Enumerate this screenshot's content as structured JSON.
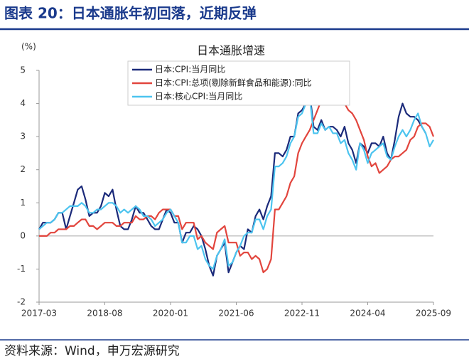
{
  "page": {
    "heading": "图表 20：日本通胀年初回落，近期反弹",
    "source": "资料来源：Wind，申万宏源研究"
  },
  "chart_data": {
    "type": "line",
    "title": "日本通胀增速",
    "y_label": "(%)",
    "categories": [
      "2017-03",
      null,
      null,
      null,
      null,
      null,
      null,
      null,
      null,
      null,
      null,
      null,
      null,
      null,
      null,
      null,
      null,
      "2018-08",
      null,
      null,
      null,
      null,
      null,
      null,
      null,
      null,
      null,
      null,
      null,
      null,
      null,
      null,
      null,
      null,
      "2020-01",
      null,
      null,
      null,
      null,
      null,
      null,
      null,
      null,
      null,
      null,
      null,
      null,
      null,
      null,
      null,
      null,
      "2021-06",
      null,
      null,
      null,
      null,
      null,
      null,
      null,
      null,
      null,
      null,
      null,
      null,
      null,
      null,
      null,
      null,
      "2022-11",
      null,
      null,
      null,
      null,
      null,
      null,
      null,
      null,
      null,
      null,
      null,
      null,
      null,
      null,
      null,
      null,
      "2024-04",
      null,
      null,
      null,
      null,
      null,
      null,
      null,
      null,
      null,
      null,
      null,
      null,
      null,
      null,
      null,
      null,
      "2025-09"
    ],
    "series": [
      {
        "name": "日本:CPI:当月同比",
        "color": "#1b2a7a",
        "values": [
          0.2,
          0.4,
          0.4,
          0.4,
          0.5,
          0.7,
          0.7,
          0.2,
          0.6,
          1.0,
          1.4,
          1.5,
          1.1,
          0.6,
          0.7,
          0.7,
          0.9,
          1.3,
          1.2,
          1.4,
          0.8,
          0.3,
          0.2,
          0.2,
          0.5,
          0.9,
          0.7,
          0.7,
          0.5,
          0.3,
          0.2,
          0.2,
          0.5,
          0.8,
          0.7,
          0.4,
          0.4,
          -0.2,
          0.1,
          0.1,
          0.3,
          0.2,
          0.0,
          -0.4,
          -0.9,
          -1.2,
          -0.6,
          -0.4,
          -0.2,
          -1.1,
          -0.8,
          -0.5,
          -0.3,
          -0.4,
          0.2,
          0.1,
          0.6,
          0.8,
          0.5,
          0.9,
          1.2,
          2.5,
          2.5,
          2.4,
          2.6,
          3.0,
          3.0,
          3.7,
          3.8,
          4.0,
          4.3,
          3.3,
          3.2,
          3.5,
          3.2,
          3.3,
          3.3,
          3.2,
          3.0,
          3.3,
          2.8,
          2.6,
          2.2,
          2.8,
          2.7,
          2.5,
          2.8,
          2.8,
          2.7,
          3.0,
          2.5,
          2.3,
          2.9,
          3.6,
          4.0,
          3.7,
          3.6,
          3.6,
          3.5,
          3.3,
          3.1,
          null,
          null
        ]
      },
      {
        "name": "日本:CPI:总项(剔除新鲜食品和能源):同比",
        "color": "#e2453d",
        "values": [
          0.0,
          0.0,
          0.0,
          0.1,
          0.1,
          0.2,
          0.2,
          0.2,
          0.3,
          0.3,
          0.4,
          0.5,
          0.5,
          0.3,
          0.3,
          0.2,
          0.3,
          0.4,
          0.4,
          0.4,
          0.3,
          0.3,
          0.4,
          0.4,
          0.4,
          0.6,
          0.5,
          0.5,
          0.6,
          0.6,
          0.5,
          0.7,
          0.8,
          0.8,
          0.8,
          0.6,
          0.6,
          0.2,
          0.4,
          0.4,
          0.4,
          -0.1,
          0.0,
          -0.2,
          -0.3,
          -0.4,
          0.1,
          0.2,
          0.3,
          -0.2,
          -0.2,
          -0.2,
          -0.6,
          -0.5,
          -0.5,
          -0.7,
          -0.6,
          -0.7,
          -1.1,
          -1.0,
          -0.7,
          0.8,
          0.8,
          1.0,
          1.2,
          1.6,
          1.8,
          2.5,
          2.8,
          3.0,
          3.2,
          3.5,
          3.8,
          4.1,
          4.3,
          4.2,
          4.3,
          4.3,
          4.2,
          4.0,
          3.8,
          3.7,
          3.5,
          3.2,
          2.9,
          2.4,
          2.1,
          2.2,
          1.9,
          2.0,
          2.1,
          2.3,
          2.4,
          2.4,
          2.5,
          2.6,
          2.9,
          3.0,
          3.3,
          3.4,
          3.4,
          3.3,
          3.0
        ]
      },
      {
        "name": "日本:核心CPI:当月同比",
        "color": "#4cc4ef",
        "values": [
          0.2,
          0.3,
          0.4,
          0.4,
          0.5,
          0.7,
          0.7,
          0.8,
          0.9,
          0.9,
          0.9,
          1.0,
          0.9,
          0.7,
          0.7,
          0.8,
          0.8,
          0.9,
          1.0,
          1.0,
          0.9,
          0.7,
          0.8,
          0.7,
          0.8,
          0.9,
          0.8,
          0.6,
          0.6,
          0.5,
          0.3,
          0.4,
          0.5,
          0.7,
          0.8,
          0.6,
          0.4,
          -0.2,
          -0.2,
          0.0,
          0.0,
          -0.4,
          -0.3,
          -0.7,
          -0.9,
          -1.0,
          -0.6,
          -0.4,
          -0.1,
          -0.9,
          -0.8,
          -0.5,
          -0.3,
          0.0,
          0.1,
          0.1,
          0.5,
          0.5,
          0.2,
          0.6,
          0.8,
          2.1,
          2.1,
          2.2,
          2.4,
          2.8,
          3.0,
          3.6,
          3.7,
          4.0,
          4.2,
          3.1,
          3.1,
          3.4,
          3.2,
          3.3,
          3.1,
          3.1,
          2.8,
          2.9,
          2.5,
          2.3,
          2.0,
          2.8,
          2.6,
          2.2,
          2.5,
          2.6,
          2.7,
          2.8,
          2.4,
          2.3,
          2.7,
          3.0,
          3.2,
          3.0,
          3.2,
          3.5,
          3.7,
          3.3,
          3.1,
          2.7,
          2.9
        ]
      }
    ],
    "ylim": [
      -2,
      5
    ],
    "yticks": [
      -2,
      -1,
      0,
      1,
      2,
      3,
      4,
      5
    ],
    "zero_line": true
  }
}
